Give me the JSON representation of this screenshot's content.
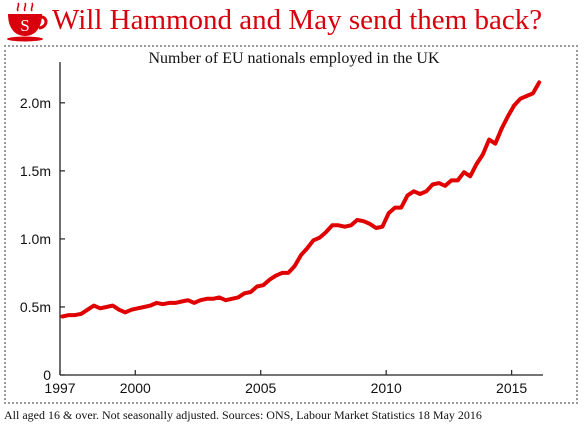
{
  "header": {
    "title": "Will Hammond and May send them back?",
    "logo_icon": "teacup-icon",
    "logo_letter": "S",
    "accent_color": "#d8000c"
  },
  "footnote": "All aged 16 & over. Not seasonally adjusted. Sources: ONS, Labour Market Statistics 18 May 2016",
  "chart_data": {
    "type": "line",
    "title": "Number of EU nationals employed in the UK",
    "xlabel": "",
    "ylabel": "",
    "x_tick_labels": [
      "1997",
      "2000",
      "2005",
      "2010",
      "2015"
    ],
    "y_tick_labels": [
      "0",
      "0.5m",
      "1.0m",
      "1.5m",
      "2.0m"
    ],
    "x_ticks": [
      1997,
      2000,
      2005,
      2010,
      2015
    ],
    "y_ticks": [
      0,
      0.5,
      1.0,
      1.5,
      2.0
    ],
    "xlim": [
      1997,
      2016.25
    ],
    "ylim": [
      0,
      2.3
    ],
    "grid": false,
    "line_color": "#e00000",
    "series": [
      {
        "x": [
          1997.1,
          1997.35,
          1997.6,
          1997.85,
          1998.1,
          1998.35,
          1998.6,
          1998.85,
          1999.1,
          1999.35,
          1999.6,
          1999.85,
          2000.1,
          2000.35,
          2000.6,
          2000.85,
          2001.1,
          2001.35,
          2001.6,
          2001.85,
          2002.1,
          2002.35,
          2002.6,
          2002.85,
          2003.1,
          2003.35,
          2003.6,
          2003.85,
          2004.1,
          2004.35,
          2004.6,
          2004.85,
          2005.1,
          2005.35,
          2005.6,
          2005.85,
          2006.1,
          2006.35,
          2006.6,
          2006.85,
          2007.1,
          2007.35,
          2007.6,
          2007.85,
          2008.1,
          2008.35,
          2008.6,
          2008.85,
          2009.1,
          2009.35,
          2009.6,
          2009.85,
          2010.1,
          2010.35,
          2010.6,
          2010.85,
          2011.1,
          2011.35,
          2011.6,
          2011.85,
          2012.1,
          2012.35,
          2012.6,
          2012.85,
          2013.1,
          2013.35,
          2013.6,
          2013.85,
          2014.1,
          2014.35,
          2014.6,
          2014.85,
          2015.1,
          2015.35,
          2015.6,
          2015.85,
          2016.1
        ],
        "values": [
          0.43,
          0.44,
          0.44,
          0.45,
          0.48,
          0.51,
          0.49,
          0.5,
          0.51,
          0.48,
          0.46,
          0.48,
          0.49,
          0.5,
          0.51,
          0.53,
          0.52,
          0.53,
          0.53,
          0.54,
          0.55,
          0.53,
          0.55,
          0.56,
          0.56,
          0.57,
          0.55,
          0.56,
          0.57,
          0.6,
          0.61,
          0.65,
          0.66,
          0.7,
          0.73,
          0.75,
          0.75,
          0.8,
          0.88,
          0.93,
          0.99,
          1.01,
          1.05,
          1.1,
          1.1,
          1.09,
          1.1,
          1.14,
          1.13,
          1.11,
          1.08,
          1.09,
          1.19,
          1.23,
          1.23,
          1.32,
          1.35,
          1.33,
          1.35,
          1.4,
          1.41,
          1.39,
          1.43,
          1.43,
          1.49,
          1.46,
          1.55,
          1.62,
          1.73,
          1.7,
          1.81,
          1.9,
          1.98,
          2.03,
          2.05,
          2.07,
          2.15
        ]
      }
    ]
  }
}
